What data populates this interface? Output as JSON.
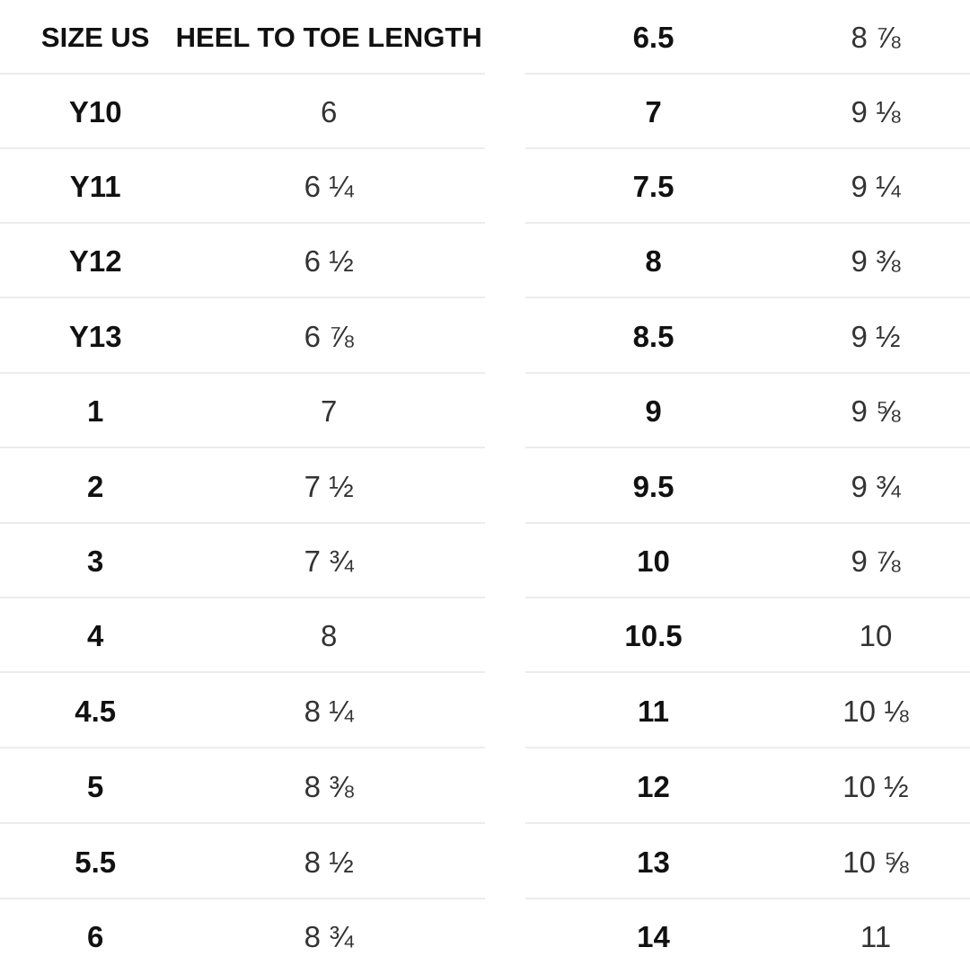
{
  "headers": {
    "size": "SIZE US",
    "length": "HEEL TO TOE LENGTH"
  },
  "left_rows": [
    {
      "size": "Y10",
      "length": "6"
    },
    {
      "size": "Y11",
      "length": "6 ¼"
    },
    {
      "size": "Y12",
      "length": "6 ½"
    },
    {
      "size": "Y13",
      "length": "6 ⅞"
    },
    {
      "size": "1",
      "length": "7"
    },
    {
      "size": "2",
      "length": "7 ½"
    },
    {
      "size": "3",
      "length": "7 ¾"
    },
    {
      "size": "4",
      "length": "8"
    },
    {
      "size": "4.5",
      "length": "8 ¼"
    },
    {
      "size": "5",
      "length": "8 ⅜"
    },
    {
      "size": "5.5",
      "length": "8 ½"
    },
    {
      "size": "6",
      "length": "8 ¾"
    }
  ],
  "right_rows": [
    {
      "size": "6.5",
      "length": "8 ⅞"
    },
    {
      "size": "7",
      "length": "9 ⅛"
    },
    {
      "size": "7.5",
      "length": "9 ¼"
    },
    {
      "size": "8",
      "length": "9 ⅜"
    },
    {
      "size": "8.5",
      "length": "9 ½"
    },
    {
      "size": "9",
      "length": "9 ⅝"
    },
    {
      "size": "9.5",
      "length": "9 ¾"
    },
    {
      "size": "10",
      "length": "9 ⅞"
    },
    {
      "size": "10.5",
      "length": "10"
    },
    {
      "size": "11",
      "length": "10 ⅛"
    },
    {
      "size": "12",
      "length": "10 ½"
    },
    {
      "size": "13",
      "length": "10 ⅝"
    },
    {
      "size": "14",
      "length": "11"
    }
  ]
}
